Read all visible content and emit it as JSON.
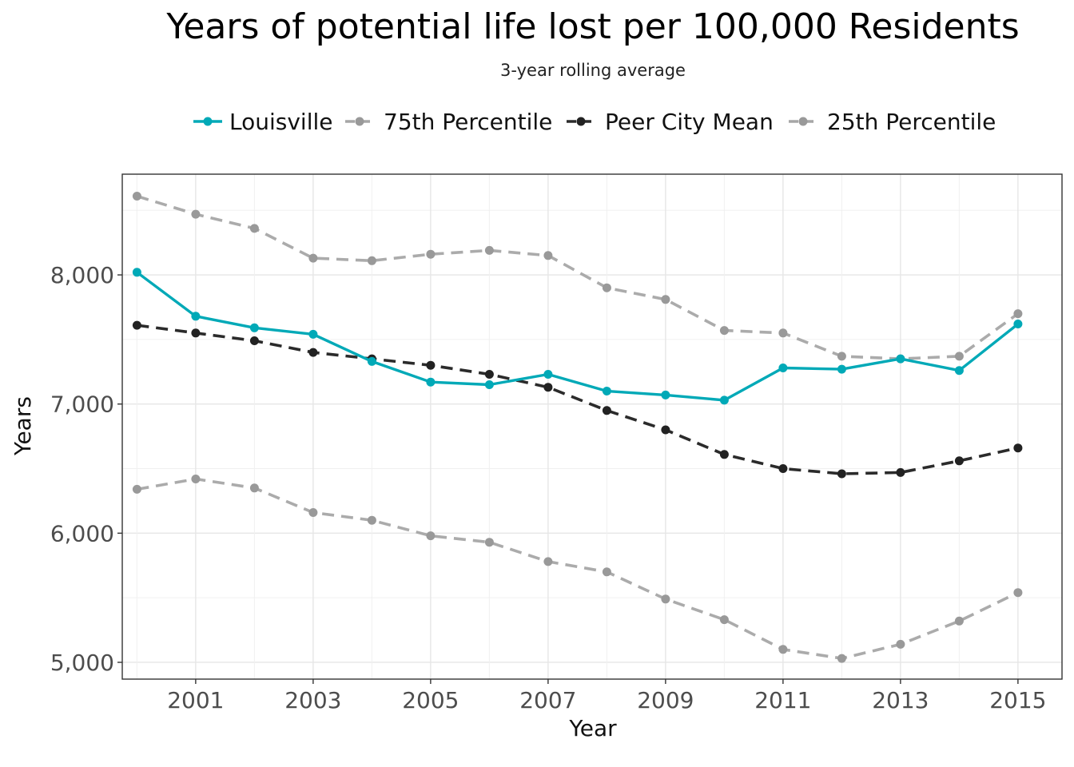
{
  "chart_data": {
    "type": "line",
    "title": "Years of potential life lost per 100,000 Residents",
    "subtitle": "3-year rolling average",
    "xlabel": "Year",
    "ylabel": "Years",
    "x": [
      2000,
      2001,
      2002,
      2003,
      2004,
      2005,
      2006,
      2007,
      2008,
      2009,
      2010,
      2011,
      2012,
      2013,
      2014,
      2015
    ],
    "x_ticks": [
      2001,
      2003,
      2005,
      2007,
      2009,
      2011,
      2013,
      2015
    ],
    "x_tick_labels": [
      "2001",
      "2003",
      "2005",
      "2007",
      "2009",
      "2011",
      "2013",
      "2015"
    ],
    "y_ticks": [
      5000,
      6000,
      7000,
      8000
    ],
    "y_tick_labels": [
      "5,000",
      "6,000",
      "7,000",
      "8,000"
    ],
    "xlim": [
      1999.75,
      2015.75
    ],
    "ylim": [
      4870,
      8780
    ],
    "grid": true,
    "legend_position": "top",
    "series": [
      {
        "name": "Louisville",
        "color": "#00a9b7",
        "dashed": false,
        "values": [
          8020,
          7680,
          7590,
          7540,
          7330,
          7170,
          7150,
          7230,
          7100,
          7070,
          7030,
          7280,
          7270,
          7350,
          7260,
          7620
        ]
      },
      {
        "name": "75th Percentile",
        "color": "#a6a6a6",
        "dashed": true,
        "values": [
          8610,
          8470,
          8360,
          8130,
          8110,
          8160,
          8190,
          8150,
          7900,
          7810,
          7570,
          7550,
          7370,
          7350,
          7370,
          7700
        ]
      },
      {
        "name": "Peer City Mean",
        "color": "#2b2b2b",
        "dashed": true,
        "values": [
          7610,
          7550,
          7490,
          7400,
          7350,
          7300,
          7230,
          7130,
          6950,
          6800,
          6610,
          6500,
          6460,
          6470,
          6560,
          6660
        ]
      },
      {
        "name": "25th Percentile",
        "color": "#a6a6a6",
        "dashed": true,
        "values": [
          6340,
          6420,
          6350,
          6160,
          6100,
          5980,
          5930,
          5780,
          5700,
          5490,
          5330,
          5100,
          5030,
          5140,
          5320,
          5540
        ]
      }
    ]
  }
}
